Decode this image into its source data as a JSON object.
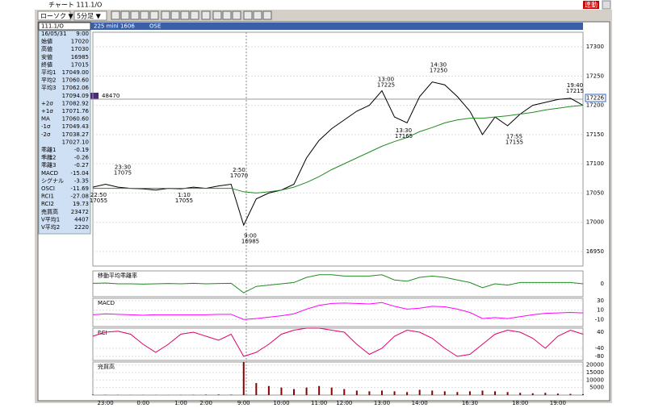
{
  "window": {
    "title": "チャート 111.1/O",
    "sync": "連動",
    "chart_style": "ローソク ▼",
    "interval": "5分足 ▼",
    "symbol": "111.1/O",
    "header_name": "225 mini 1606",
    "exchange": "OSE",
    "marker_left": "48470",
    "marker_right": "17226"
  },
  "info": [
    {
      "label": "16/05/31",
      "value": "9:00"
    },
    {
      "label": "始値",
      "value": "17020"
    },
    {
      "label": "高値",
      "value": "17030"
    },
    {
      "label": "安値",
      "value": "16985"
    },
    {
      "label": "終値",
      "value": "17015"
    },
    {
      "label": "平均1",
      "value": "17049.00"
    },
    {
      "label": "平均2",
      "value": "17060.60"
    },
    {
      "label": "平均3",
      "value": "17062.06"
    },
    {
      "value": "17094.09"
    },
    {
      "label": "+2σ",
      "value": "17082.92"
    },
    {
      "label": "+1σ",
      "value": "17071.76"
    },
    {
      "label": "MA",
      "value": "17060.60"
    },
    {
      "label": "-1σ",
      "value": "17049.43"
    },
    {
      "label": "-2σ",
      "value": "17038.27"
    },
    {
      "value": "17027.10"
    },
    {
      "label": "乖離1",
      "value": "-0.19"
    },
    {
      "label": "乖離2",
      "value": "-0.26"
    },
    {
      "label": "乖離3",
      "value": "-0.27"
    },
    {
      "label": "MACD",
      "value": "-15.04"
    },
    {
      "label": "シグナル",
      "value": "-3.35"
    },
    {
      "label": "OSCI",
      "value": "-11.69"
    },
    {
      "label": "RCI1",
      "value": "-27.08"
    },
    {
      "label": "RCI2",
      "value": "19.73"
    },
    {
      "label": "売買高",
      "value": "23472"
    },
    {
      "label": "V平均1",
      "value": "4407"
    },
    {
      "label": "V平均2",
      "value": "2220"
    }
  ],
  "chart_data": [
    {
      "type": "line",
      "categories": [
        null,
        "23:00",
        null,
        null,
        "0:00",
        null,
        null,
        "1:00",
        null,
        "2:00",
        null,
        null,
        "9:00",
        null,
        null,
        "10:00",
        null,
        null,
        "11:00",
        null,
        "12:00",
        null,
        null,
        "13:00",
        null,
        null,
        "14:00",
        null,
        null,
        null,
        "16:30",
        null,
        null,
        null,
        "18:00",
        null,
        null,
        "19:00",
        null,
        null
      ],
      "series": [
        {
          "color": "#000000",
          "values": [
            17060,
            17065,
            17060,
            17058,
            17057,
            17055,
            17058,
            17057,
            17060,
            17058,
            17062,
            17065,
            16995,
            17040,
            17050,
            17055,
            17065,
            17110,
            17140,
            17160,
            17175,
            17190,
            17200,
            17225,
            17180,
            17170,
            17215,
            17240,
            17235,
            17215,
            17190,
            17150,
            17180,
            17165,
            17185,
            17200,
            17205,
            17210,
            17212,
            17200
          ]
        },
        {
          "color": "#228b22",
          "values": [
            17058,
            17058,
            17058,
            17058,
            17058,
            17058,
            17058,
            17058,
            17058,
            17058,
            17058,
            17058,
            17052,
            17050,
            17052,
            17055,
            17060,
            17068,
            17078,
            17090,
            17100,
            17110,
            17120,
            17130,
            17138,
            17145,
            17155,
            17162,
            17170,
            17175,
            17178,
            17178,
            17180,
            17182,
            17185,
            17188,
            17192,
            17195,
            17198,
            17200
          ]
        }
      ],
      "ylim": [
        16925,
        17325
      ],
      "yticks": [
        16950,
        17000,
        17050,
        17100,
        17150,
        17200,
        17250,
        17300
      ],
      "annotations": [
        {
          "time": "22:50",
          "price": 17055
        },
        {
          "time": "23:30",
          "price": 17075
        },
        {
          "time": "1:10",
          "price": 17055
        },
        {
          "time": "2:50",
          "price": 17070
        },
        {
          "time": "9:00",
          "price": 16985
        },
        {
          "time": "13:00",
          "price": 17225
        },
        {
          "time": "13:30",
          "price": 17165
        },
        {
          "time": "14:30",
          "price": 17250
        },
        {
          "time": "17:55",
          "price": 17155
        },
        {
          "time": "19:40",
          "price": 17215
        }
      ]
    },
    {
      "type": "line",
      "title": "移動平均乖離率",
      "series": [
        {
          "color": "#228b22",
          "values": [
            0.02,
            0.03,
            0,
            0,
            -0.01,
            0,
            0.01,
            0,
            0.02,
            0,
            0.01,
            0.02,
            -0.35,
            -0.1,
            -0.05,
            0,
            0.05,
            0.25,
            0.35,
            0.35,
            0.3,
            0.3,
            0.3,
            0.35,
            0.15,
            0.1,
            0.25,
            0.3,
            0.25,
            0.15,
            0.05,
            -0.15,
            0,
            -0.05,
            0.05,
            0.05,
            0.05,
            0.05,
            0.05,
            0
          ]
        }
      ],
      "ylim": [
        -0.5,
        0.5
      ],
      "yticks": [
        0
      ]
    },
    {
      "type": "line",
      "title": "MACD",
      "series": [
        {
          "color": "#ff00ff",
          "values": [
            0,
            2,
            1,
            0,
            -1,
            0,
            0,
            0,
            0,
            0,
            1,
            1,
            -10,
            -8,
            -5,
            -2,
            2,
            12,
            20,
            24,
            25,
            24,
            23,
            26,
            18,
            12,
            14,
            18,
            17,
            12,
            5,
            -8,
            -6,
            -8,
            -4,
            0,
            3,
            4,
            5,
            4
          ]
        }
      ],
      "ylim": [
        -25,
        35
      ],
      "yticks": [
        30,
        10,
        -10
      ]
    },
    {
      "type": "line",
      "title": "RCI",
      "series": [
        {
          "color": "#e0006a",
          "values": [
            20,
            40,
            45,
            30,
            -20,
            -60,
            -20,
            30,
            40,
            20,
            0,
            30,
            -80,
            -60,
            -20,
            30,
            50,
            60,
            60,
            50,
            40,
            -20,
            -70,
            -40,
            20,
            50,
            40,
            10,
            -40,
            -80,
            -70,
            -20,
            30,
            50,
            40,
            10,
            -40,
            20,
            50,
            30
          ]
        }
      ],
      "ylim": [
        -100,
        60
      ],
      "yticks": [
        40,
        -40,
        -80
      ]
    },
    {
      "type": "bar",
      "title": "売買高",
      "series": [
        {
          "color": "#8b0000",
          "values": [
            300,
            200,
            150,
            100,
            100,
            100,
            100,
            150,
            200,
            300,
            400,
            300,
            23472,
            8000,
            6000,
            5000,
            4000,
            5000,
            6000,
            5000,
            4000,
            3000,
            2500,
            3000,
            2500,
            2000,
            3500,
            3000,
            2500,
            2000,
            2500,
            3000,
            2500,
            2000,
            1500,
            1200,
            1500,
            1000,
            800,
            600
          ]
        }
      ],
      "ylim": [
        0,
        22000
      ],
      "yticks": [
        20000,
        15000,
        10000,
        5000
      ]
    }
  ]
}
